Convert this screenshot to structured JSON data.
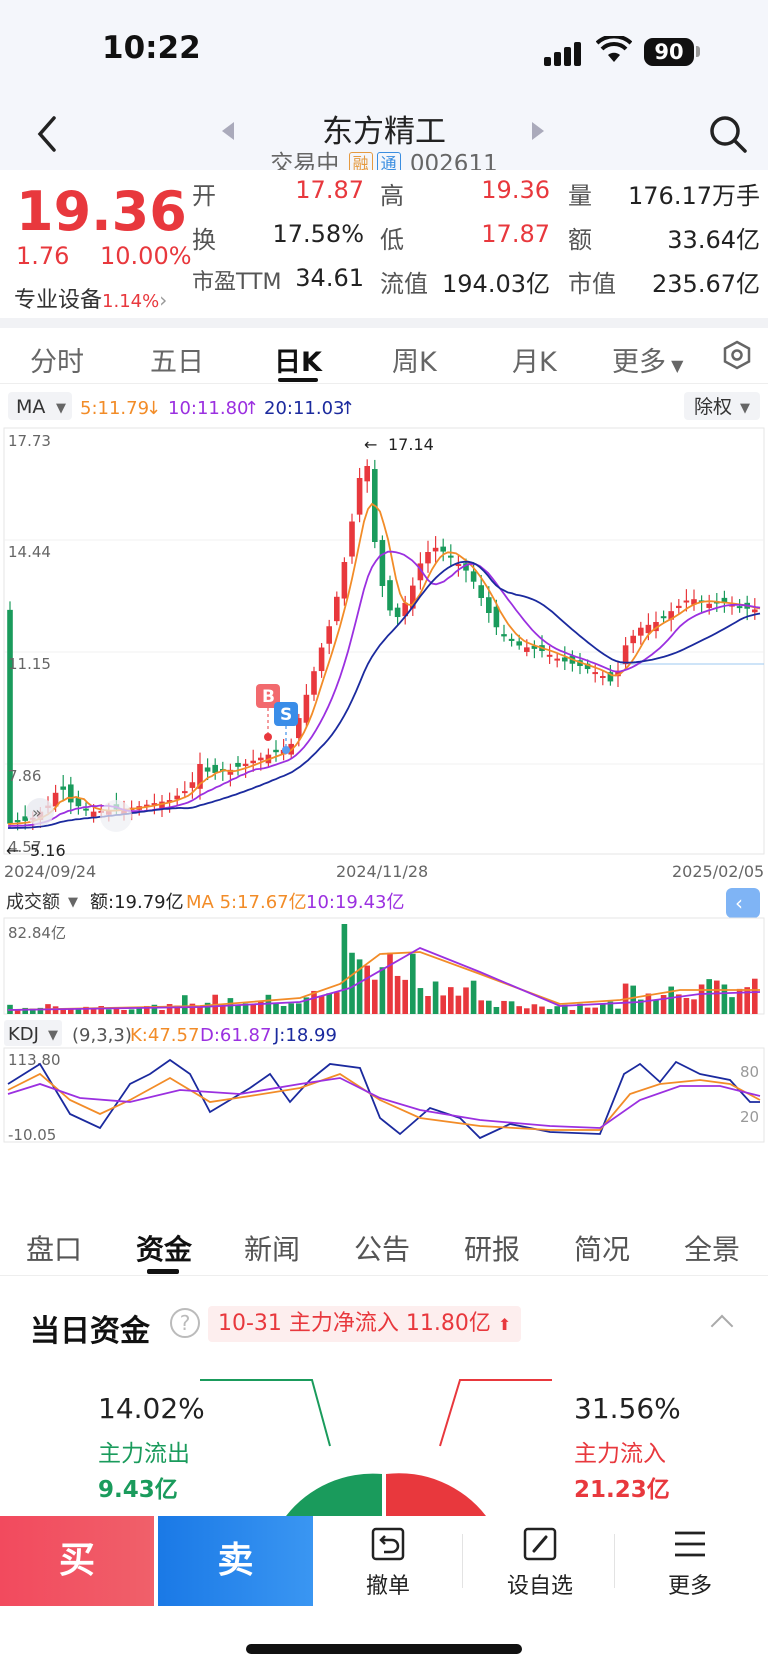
{
  "status_bar": {
    "time": "10:22",
    "battery": "90"
  },
  "header": {
    "title": "东方精工",
    "status": "交易中",
    "tag_margin": "融",
    "tag_connect": "通",
    "code": "002611"
  },
  "quote": {
    "price": "19.36",
    "change": "1.76",
    "change_pct": "10.00%",
    "sector": "专业设备",
    "sector_pct": "1.14%",
    "fields": [
      {
        "label": "开",
        "value": "17.87"
      },
      {
        "label": "高",
        "value": "19.36"
      },
      {
        "label": "量",
        "value": "176.17万手"
      },
      {
        "label": "换",
        "value": "17.58%"
      },
      {
        "label": "低",
        "value": "17.87"
      },
      {
        "label": "额",
        "value": "33.64亿"
      },
      {
        "label": "市盈TTM",
        "value": "34.61"
      },
      {
        "label": "流值",
        "value": "194.03亿"
      },
      {
        "label": "市值",
        "value": "235.67亿"
      }
    ]
  },
  "period_tabs": [
    "分时",
    "五日",
    "日K",
    "周K",
    "月K",
    "更多"
  ],
  "active_period": "日K",
  "kline": {
    "indicator": "MA",
    "ma5": "5:11.79",
    "ma10": "10:11.80",
    "ma20": "20:11.03",
    "adjust": "除权",
    "y_ticks": [
      "17.73",
      "14.44",
      "11.15",
      "7.86",
      "4.57"
    ],
    "x_ticks": [
      "2024/09/24",
      "2024/11/28",
      "2025/02/05"
    ],
    "max_label": "17.14",
    "min_label": "5.16",
    "buy_marker": "B",
    "sell_marker": "S"
  },
  "volume": {
    "label": "成交额",
    "amount": "额:19.79亿",
    "ma5": "MA 5:17.67亿",
    "ma10": "10:19.43亿",
    "max_tick": "82.84亿"
  },
  "kdj": {
    "label": "KDJ",
    "params": "(9,3,3)",
    "k": "K:47.57",
    "d": "D:61.87",
    "j": "J:18.99",
    "top_tick": "113.80",
    "bottom_tick": "-10.05",
    "level_80": "80",
    "level_20": "20"
  },
  "bottom_tabs": [
    "盘口",
    "资金",
    "新闻",
    "公告",
    "研报",
    "简况",
    "全景"
  ],
  "active_bottom_tab": "资金",
  "funds": {
    "title": "当日资金",
    "badge": "10-31 主力净流入 11.80亿",
    "out_pct": "14.02%",
    "out_label": "主力流出",
    "out_value": "9.43亿",
    "in_pct": "31.56%",
    "in_label": "主力流入",
    "in_value": "21.23亿"
  },
  "actions": {
    "buy": "买",
    "sell": "卖",
    "cancel": "撤单",
    "watchlist": "设自选",
    "more": "更多"
  },
  "colors": {
    "up": "#e8383d",
    "down": "#1a9b5c",
    "accent_blue": "#1a79e6",
    "ma5": "#f28c28",
    "ma10": "#9b30e0",
    "ma20": "#1b2a9e"
  }
}
